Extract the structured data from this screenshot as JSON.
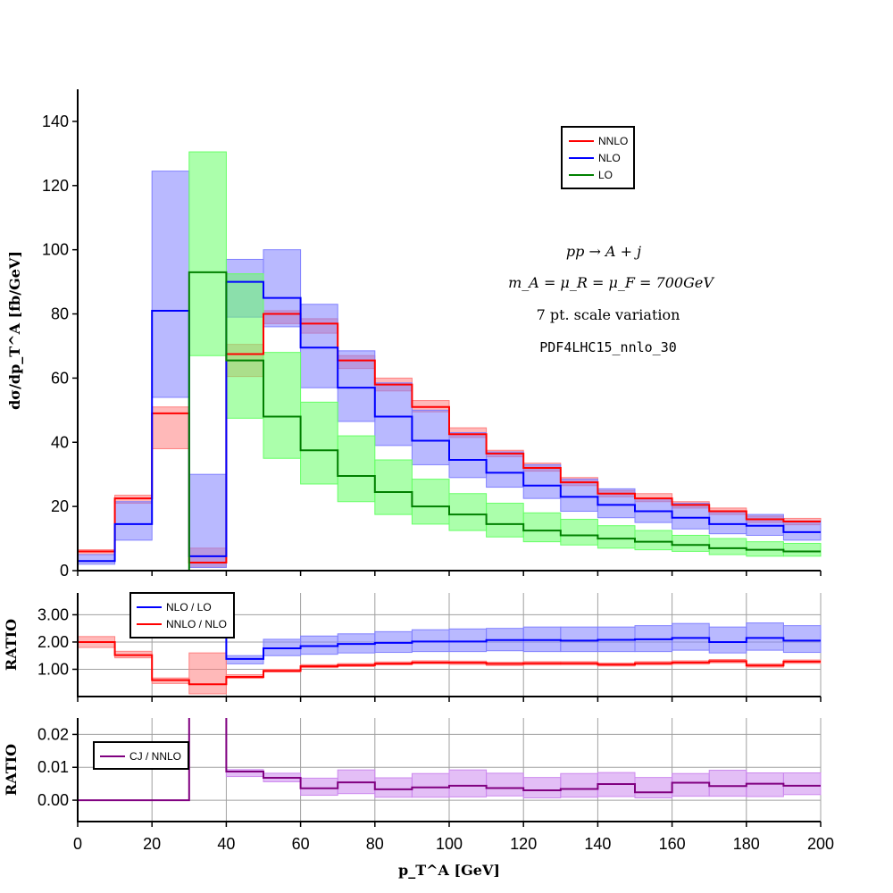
{
  "chart_data": [
    {
      "type": "line",
      "panel": "main",
      "ylabel": "dσ/dp_T^A [fb/GeV]",
      "xlim": [
        0,
        200
      ],
      "ylim": [
        0,
        150
      ],
      "yticks": [
        0,
        20,
        40,
        60,
        80,
        100,
        120,
        140
      ],
      "grid": false,
      "legend_position": "top-right",
      "annotations": [
        "pp → A + j",
        "m_A = μ_R = μ_F = 700GeV",
        "7 pt. scale variation",
        "PDF4LHC15_nnlo_30"
      ],
      "bin_edges": [
        0,
        10,
        20,
        30,
        40,
        50,
        60,
        70,
        80,
        90,
        100,
        110,
        120,
        130,
        140,
        150,
        160,
        170,
        180,
        190,
        200
      ],
      "series": [
        {
          "name": "NNLO",
          "color": "#ff0000",
          "band_color": "#ff8080",
          "values": [
            6,
            22.5,
            49,
            2.5,
            67.5,
            80,
            77,
            65.5,
            58,
            51,
            42.5,
            36.5,
            32,
            27.5,
            24,
            22.5,
            20.5,
            18.5,
            16,
            15.3
          ],
          "low": [
            5,
            21,
            38,
            1,
            60.5,
            77,
            74,
            63,
            56,
            49.5,
            41.5,
            35.5,
            31,
            26.5,
            23,
            21.5,
            19.5,
            17.5,
            15,
            14.3
          ],
          "high": [
            6.5,
            23.5,
            51,
            7,
            70.5,
            81,
            78.5,
            67,
            60,
            53,
            44.5,
            37.5,
            33.5,
            29,
            25,
            24,
            21.5,
            19.5,
            17,
            16.3
          ]
        },
        {
          "name": "NLO",
          "color": "#0000ff",
          "band_color": "#8080ff",
          "values": [
            3,
            14.5,
            81,
            4.5,
            90,
            85,
            69.5,
            57,
            48,
            40.5,
            34.5,
            30.5,
            26.5,
            23,
            20.5,
            18.5,
            16.5,
            14.5,
            14,
            12
          ],
          "low": [
            2,
            9.5,
            54,
            1,
            79,
            76,
            57,
            46.5,
            39,
            33,
            29,
            26,
            22.5,
            18.5,
            16.5,
            15,
            13,
            11.5,
            11,
            9.5
          ],
          "high": [
            5,
            21.5,
            124.5,
            30,
            97,
            100,
            83,
            68.5,
            58.5,
            50,
            43,
            37,
            33,
            28.5,
            25.5,
            22.5,
            21,
            18.5,
            17.5,
            15.5
          ]
        },
        {
          "name": "LO",
          "color": "#008000",
          "band_color": "#66ff66",
          "values": [
            0,
            0,
            0,
            93,
            65.5,
            48,
            37.5,
            29.5,
            24.5,
            20,
            17.5,
            14.5,
            12.5,
            11,
            10,
            9,
            8,
            7,
            6.5,
            6
          ],
          "low": [
            0,
            0,
            0,
            67,
            47.5,
            35,
            27,
            21.5,
            17.5,
            14.5,
            12.5,
            10.5,
            9,
            8,
            7,
            6.5,
            6,
            5,
            4.5,
            4.5
          ],
          "high": [
            0,
            0,
            0,
            130.5,
            92.5,
            68,
            52.5,
            42,
            34.5,
            28.5,
            24,
            21,
            18,
            16,
            14,
            12.5,
            11,
            10,
            9,
            8.5
          ]
        }
      ]
    },
    {
      "type": "line",
      "panel": "ratio1",
      "ylabel": "RATIO",
      "xlim": [
        0,
        200
      ],
      "ylim": [
        0,
        3.8
      ],
      "yticks": [
        1.0,
        2.0,
        3.0
      ],
      "ytick_labels": [
        "1.00",
        "2.00",
        "3.00"
      ],
      "grid": true,
      "legend_position": "top-left",
      "bin_edges": [
        0,
        10,
        20,
        30,
        40,
        50,
        60,
        70,
        80,
        90,
        100,
        110,
        120,
        130,
        140,
        150,
        160,
        170,
        180,
        190,
        200
      ],
      "series": [
        {
          "name": "NLO / LO",
          "color": "#0000ff",
          "band_color": "#8080ff",
          "values": [
            null,
            null,
            null,
            null,
            1.38,
            1.77,
            1.85,
            1.93,
            1.97,
            2.02,
            2.02,
            2.07,
            2.07,
            2.05,
            2.08,
            2.1,
            2.15,
            2.0,
            2.15,
            2.05
          ],
          "low": [
            null,
            null,
            null,
            null,
            1.2,
            1.5,
            1.55,
            1.6,
            1.62,
            1.65,
            1.65,
            1.68,
            1.65,
            1.65,
            1.65,
            1.65,
            1.7,
            1.6,
            1.7,
            1.62
          ],
          "high": [
            null,
            null,
            null,
            null,
            1.5,
            2.1,
            2.22,
            2.3,
            2.38,
            2.45,
            2.48,
            2.5,
            2.55,
            2.55,
            2.55,
            2.6,
            2.68,
            2.55,
            2.7,
            2.6
          ]
        },
        {
          "name": "NNLO / NLO",
          "color": "#ff0000",
          "band_color": "#ff8080",
          "values": [
            2.0,
            1.52,
            0.6,
            0.45,
            0.72,
            0.94,
            1.11,
            1.15,
            1.21,
            1.25,
            1.24,
            1.2,
            1.22,
            1.22,
            1.17,
            1.22,
            1.25,
            1.3,
            1.14,
            1.28
          ],
          "low": [
            1.8,
            1.42,
            0.48,
            0.1,
            0.67,
            0.9,
            1.06,
            1.1,
            1.16,
            1.2,
            1.18,
            1.14,
            1.16,
            1.16,
            1.12,
            1.16,
            1.19,
            1.24,
            1.08,
            1.22
          ],
          "high": [
            2.2,
            1.66,
            0.68,
            1.6,
            0.8,
            1.0,
            1.17,
            1.21,
            1.27,
            1.31,
            1.3,
            1.26,
            1.28,
            1.28,
            1.23,
            1.28,
            1.31,
            1.36,
            1.2,
            1.34
          ]
        }
      ]
    },
    {
      "type": "line",
      "panel": "ratio2",
      "ylabel": "RATIO",
      "xlabel": "p_T^A [GeV]",
      "xlim": [
        0,
        200
      ],
      "ylim": [
        -0.0065,
        0.025
      ],
      "yticks": [
        0.0,
        0.01,
        0.02
      ],
      "ytick_labels": [
        "0.00",
        "0.01",
        "0.02"
      ],
      "xticks": [
        0,
        20,
        40,
        60,
        80,
        100,
        120,
        140,
        160,
        180,
        200
      ],
      "grid": true,
      "legend_position": "left",
      "bin_edges": [
        0,
        10,
        20,
        30,
        40,
        50,
        60,
        70,
        80,
        90,
        100,
        110,
        120,
        130,
        140,
        150,
        160,
        170,
        180,
        190,
        200
      ],
      "series": [
        {
          "name": "CJ / NNLO",
          "color": "#800080",
          "band_color": "#cc88ee",
          "values": [
            0,
            0,
            0,
            null,
            0.0087,
            0.0068,
            0.0036,
            0.0054,
            0.0033,
            0.0039,
            0.0044,
            0.0037,
            0.003,
            0.0034,
            0.0049,
            0.0024,
            0.0053,
            0.0043,
            0.005,
            0.0044
          ],
          "low": [
            0,
            0,
            0,
            null,
            0.0072,
            0.0056,
            0.0015,
            0.002,
            0.0009,
            0.0009,
            0.001,
            0.0013,
            0.0007,
            0.0009,
            0.0011,
            0.0007,
            0.0012,
            0.0012,
            0.0011,
            0.0017
          ],
          "high": [
            0,
            0,
            0,
            null,
            0.0093,
            0.0082,
            0.0067,
            0.0092,
            0.0068,
            0.0081,
            0.0092,
            0.0082,
            0.0069,
            0.0081,
            0.0084,
            0.0069,
            0.0081,
            0.0091,
            0.0083,
            0.0083
          ]
        }
      ]
    }
  ]
}
